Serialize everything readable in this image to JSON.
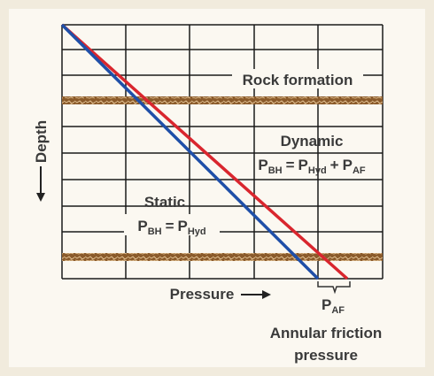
{
  "labels": {
    "rock": "Rock formation",
    "dynamic": {
      "title": "Dynamic",
      "formula": [
        [
          "P",
          "BH"
        ],
        "=",
        [
          "P",
          "Hyd"
        ],
        "+",
        [
          "P",
          "AF"
        ]
      ]
    },
    "static": {
      "title": "Static",
      "formula": [
        [
          "P",
          "BH"
        ],
        "=",
        [
          "P",
          "Hyd"
        ]
      ]
    },
    "depth": "Depth",
    "pressure": "Pressure",
    "friction": {
      "symbol": [
        "P",
        "AF"
      ],
      "line1": "Annular friction",
      "line2": "pressure"
    }
  }
}
